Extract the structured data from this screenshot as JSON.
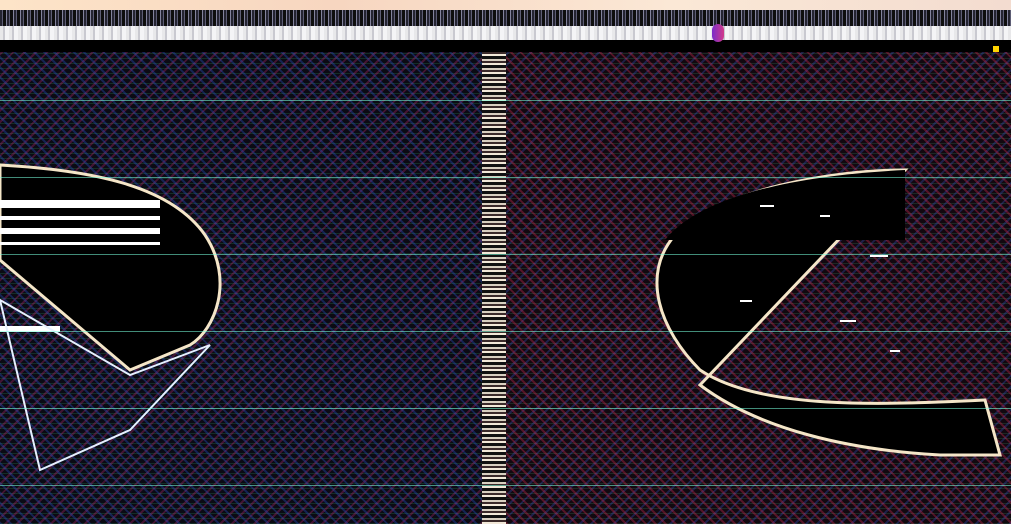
{
  "screen": {
    "description_visible_text": "",
    "scrollbar": {
      "label": ""
    },
    "left_view": {
      "label": ""
    },
    "right_view": {
      "label": ""
    }
  },
  "colors": {
    "top_strip": "#fde4c8",
    "scroll_thumb": "#7a2cc9",
    "shape_fill": "#000000",
    "shape_outline": "#f5e6c8",
    "accent_yellow": "#ffd400"
  },
  "icons": {
    "scroll_thumb": "scroll-thumb-icon",
    "marker": "marker-icon"
  }
}
